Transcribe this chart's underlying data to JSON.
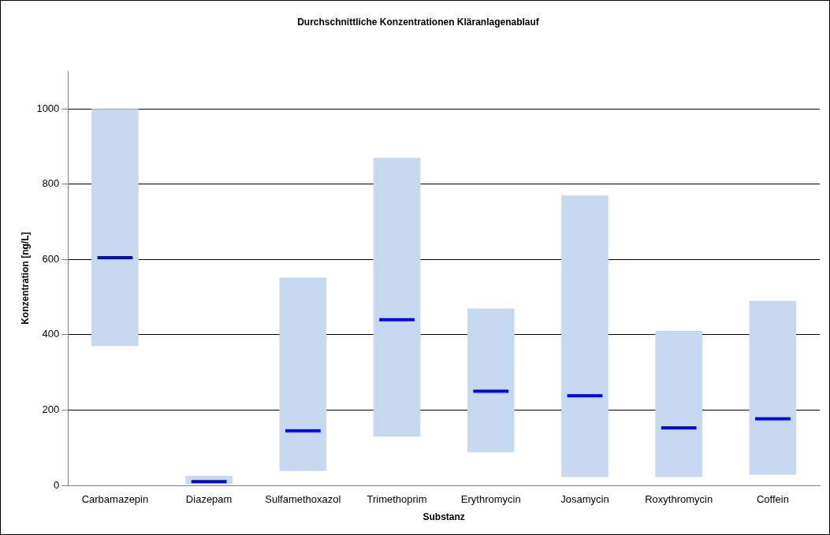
{
  "chart_data": {
    "type": "box",
    "title": "Durchschnittliche Konzentrationen Kläranlagenablauf",
    "xlabel": "Substanz",
    "ylabel": "Konzentration [ng/L]",
    "categories": [
      "Carbamazepin",
      "Diazepam",
      "Sulfamethoxazol",
      "Trimethoprim",
      "Erythromycin",
      "Josamycin",
      "Roxythromycin",
      "Coffein"
    ],
    "series": [
      {
        "color": "#c6d9f0",
        "boxes": [
          {
            "low": 370,
            "q1": 370,
            "median": 605,
            "q3": 1000,
            "high": 1000
          },
          {
            "low": 3,
            "q1": 3,
            "median": 10,
            "q3": 25,
            "high": 25
          },
          {
            "low": 38,
            "q1": 38,
            "median": 145,
            "q3": 552,
            "high": 552
          },
          {
            "low": 130,
            "q1": 130,
            "median": 440,
            "q3": 870,
            "high": 870
          },
          {
            "low": 88,
            "q1": 88,
            "median": 250,
            "q3": 470,
            "high": 470
          },
          {
            "low": 22,
            "q1": 22,
            "median": 238,
            "q3": 770,
            "high": 770
          },
          {
            "low": 22,
            "q1": 22,
            "median": 153,
            "q3": 410,
            "high": 410
          },
          {
            "low": 28,
            "q1": 28,
            "median": 177,
            "q3": 490,
            "high": 490
          }
        ]
      }
    ],
    "ylim": [
      0,
      1100
    ],
    "yticks": [
      0,
      200,
      400,
      600,
      800,
      1000
    ],
    "grid": "y",
    "legend": false
  }
}
